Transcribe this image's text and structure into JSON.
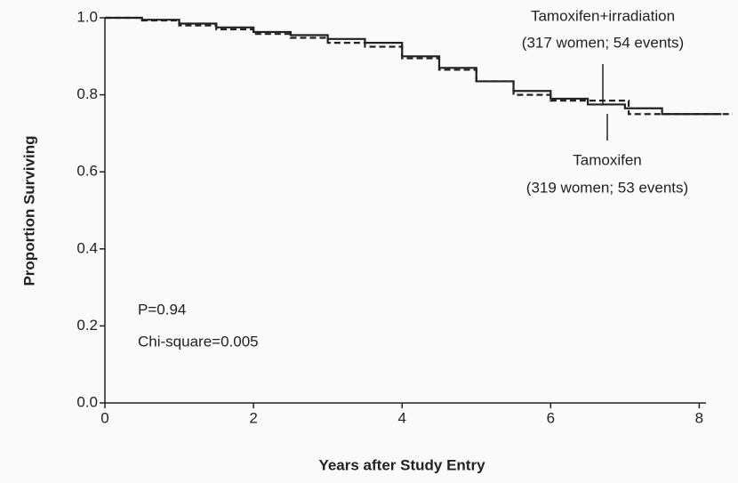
{
  "chart_data": {
    "type": "line",
    "step": true,
    "x_label": "Years after Study Entry",
    "y_label": "Proportion Surviving",
    "xlim": [
      0,
      8.45
    ],
    "ylim": [
      0,
      1
    ],
    "xticks": [
      0,
      2,
      4,
      6,
      8
    ],
    "yticks": [
      {
        "value": 0,
        "label": "0.0"
      },
      0.2,
      0.4,
      0.6,
      0.8,
      {
        "value": 1,
        "label": "1.0"
      }
    ],
    "series": [
      {
        "name": "Tamoxifen+irradiation",
        "color": "#222222",
        "dash": true,
        "x": [
          0,
          0.5,
          1,
          1.5,
          2,
          2.5,
          3,
          3.5,
          4,
          4.5,
          5,
          5.5,
          6,
          6.5,
          7,
          7.05,
          8,
          8.45
        ],
        "values": [
          1,
          0.993,
          0.98,
          0.97,
          0.958,
          0.948,
          0.935,
          0.925,
          0.895,
          0.865,
          0.835,
          0.8,
          0.785,
          0.785,
          0.785,
          0.75,
          0.75,
          0.75
        ]
      },
      {
        "name": "Tamoxifen",
        "color": "#222222",
        "dash": false,
        "x": [
          0,
          0.5,
          1,
          1.5,
          2,
          2.5,
          3,
          3.5,
          4,
          4.5,
          5,
          5.5,
          6,
          6.5,
          7,
          7.5,
          8,
          8.3
        ],
        "values": [
          1,
          0.995,
          0.985,
          0.975,
          0.963,
          0.955,
          0.945,
          0.935,
          0.9,
          0.87,
          0.835,
          0.81,
          0.79,
          0.775,
          0.765,
          0.75,
          0.75,
          0.75
        ]
      }
    ],
    "annotations": [
      "(317 women; 54 events)",
      "(319 women; 53 events)",
      "P=0.94",
      "Chi-square=0.005"
    ]
  }
}
